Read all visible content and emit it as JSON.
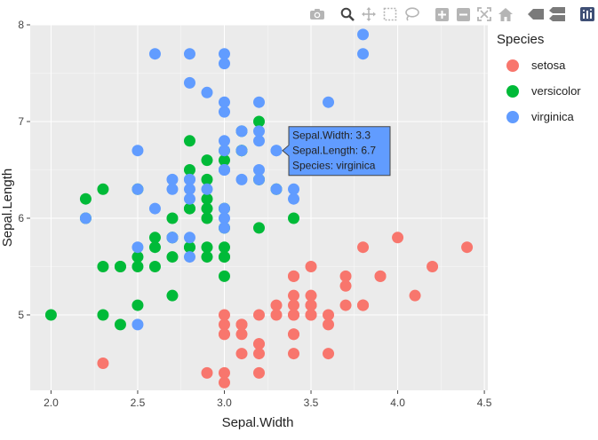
{
  "modebar": {
    "icons": [
      "camera-icon",
      "zoom-icon",
      "pan-icon",
      "box-select-icon",
      "lasso-select-icon",
      "zoom-in-icon",
      "zoom-out-icon",
      "autoscale-icon",
      "reset-axes-icon",
      "spike-lines-icon",
      "compare-hover-icon",
      "plotly-logo-icon"
    ]
  },
  "colors": {
    "setosa": "#F8766D",
    "versicolor": "#00BA38",
    "virginica": "#619CFF",
    "plot_bg": "#EBEBEB",
    "grid": "#FFFFFF"
  },
  "legend": {
    "title": "Species",
    "items": [
      "setosa",
      "versicolor",
      "virginica"
    ]
  },
  "tooltip": {
    "line1": "Sepal.Width: 3.3",
    "line2": "Sepal.Length: 6.7",
    "line3": "Species: virginica",
    "point": [
      3.3,
      6.7
    ]
  },
  "chart_data": {
    "type": "scatter",
    "xlabel": "Sepal.Width",
    "ylabel": "Sepal.Length",
    "xlim": [
      1.88,
      4.52
    ],
    "ylim": [
      4.22,
      8.0
    ],
    "x_ticks": [
      2.0,
      2.5,
      3.0,
      3.5,
      4.0,
      4.5
    ],
    "x_tick_labels": [
      "2.0",
      "2.5",
      "3.0",
      "3.5",
      "4.0",
      "4.5"
    ],
    "y_ticks": [
      5,
      6,
      7,
      8
    ],
    "y_tick_labels": [
      "5",
      "6",
      "7",
      "8"
    ],
    "grid": true,
    "legend_position": "right",
    "series": [
      {
        "name": "setosa",
        "points": [
          [
            3.5,
            5.1
          ],
          [
            3.0,
            4.9
          ],
          [
            3.2,
            4.7
          ],
          [
            3.1,
            4.6
          ],
          [
            3.6,
            5.0
          ],
          [
            3.9,
            5.4
          ],
          [
            3.4,
            4.6
          ],
          [
            3.4,
            5.0
          ],
          [
            2.9,
            4.4
          ],
          [
            3.1,
            4.9
          ],
          [
            3.7,
            5.4
          ],
          [
            3.4,
            4.8
          ],
          [
            3.0,
            4.8
          ],
          [
            3.0,
            4.3
          ],
          [
            4.0,
            5.8
          ],
          [
            4.4,
            5.7
          ],
          [
            3.9,
            5.4
          ],
          [
            3.5,
            5.1
          ],
          [
            3.8,
            5.7
          ],
          [
            3.8,
            5.1
          ],
          [
            3.4,
            5.4
          ],
          [
            3.7,
            5.1
          ],
          [
            3.6,
            4.6
          ],
          [
            3.3,
            5.1
          ],
          [
            3.4,
            4.8
          ],
          [
            3.0,
            5.0
          ],
          [
            3.4,
            5.0
          ],
          [
            3.5,
            5.2
          ],
          [
            3.4,
            5.2
          ],
          [
            3.2,
            4.7
          ],
          [
            3.1,
            4.8
          ],
          [
            3.4,
            5.4
          ],
          [
            4.1,
            5.2
          ],
          [
            4.2,
            5.5
          ],
          [
            3.1,
            4.9
          ],
          [
            3.2,
            5.0
          ],
          [
            3.5,
            5.5
          ],
          [
            3.6,
            4.9
          ],
          [
            3.0,
            4.4
          ],
          [
            3.4,
            5.1
          ],
          [
            3.5,
            5.0
          ],
          [
            2.3,
            4.5
          ],
          [
            3.2,
            4.4
          ],
          [
            3.5,
            5.0
          ],
          [
            3.8,
            5.1
          ],
          [
            3.0,
            4.8
          ],
          [
            3.8,
            5.1
          ],
          [
            3.2,
            4.6
          ],
          [
            3.7,
            5.3
          ],
          [
            3.3,
            5.0
          ]
        ]
      },
      {
        "name": "versicolor",
        "points": [
          [
            3.2,
            7.0
          ],
          [
            3.2,
            6.4
          ],
          [
            3.1,
            6.9
          ],
          [
            2.3,
            5.5
          ],
          [
            2.8,
            6.5
          ],
          [
            2.8,
            5.7
          ],
          [
            3.3,
            6.3
          ],
          [
            2.4,
            4.9
          ],
          [
            2.9,
            6.6
          ],
          [
            2.7,
            5.2
          ],
          [
            2.0,
            5.0
          ],
          [
            3.0,
            5.9
          ],
          [
            2.2,
            6.0
          ],
          [
            2.9,
            6.1
          ],
          [
            2.9,
            5.6
          ],
          [
            3.1,
            6.7
          ],
          [
            3.0,
            5.6
          ],
          [
            2.7,
            5.8
          ],
          [
            2.2,
            6.2
          ],
          [
            2.5,
            5.6
          ],
          [
            3.2,
            5.9
          ],
          [
            2.8,
            6.1
          ],
          [
            2.5,
            6.3
          ],
          [
            2.8,
            6.1
          ],
          [
            2.9,
            6.4
          ],
          [
            3.0,
            6.6
          ],
          [
            2.8,
            6.8
          ],
          [
            3.0,
            6.7
          ],
          [
            2.9,
            6.0
          ],
          [
            2.6,
            5.7
          ],
          [
            2.4,
            5.5
          ],
          [
            2.4,
            5.5
          ],
          [
            2.7,
            5.8
          ],
          [
            2.7,
            6.0
          ],
          [
            3.0,
            5.4
          ],
          [
            3.4,
            6.0
          ],
          [
            3.1,
            6.7
          ],
          [
            2.3,
            6.3
          ],
          [
            3.0,
            5.6
          ],
          [
            2.5,
            5.5
          ],
          [
            2.6,
            5.5
          ],
          [
            3.0,
            6.1
          ],
          [
            2.6,
            5.8
          ],
          [
            2.3,
            5.0
          ],
          [
            2.7,
            5.6
          ],
          [
            3.0,
            5.7
          ],
          [
            2.9,
            5.7
          ],
          [
            2.9,
            6.2
          ],
          [
            2.5,
            5.1
          ],
          [
            2.8,
            5.7
          ]
        ]
      },
      {
        "name": "virginica",
        "points": [
          [
            3.3,
            6.3
          ],
          [
            2.7,
            5.8
          ],
          [
            3.0,
            7.1
          ],
          [
            2.9,
            6.3
          ],
          [
            3.0,
            6.5
          ],
          [
            3.0,
            7.6
          ],
          [
            2.5,
            4.9
          ],
          [
            2.9,
            7.3
          ],
          [
            2.5,
            6.7
          ],
          [
            3.6,
            7.2
          ],
          [
            3.2,
            6.5
          ],
          [
            2.7,
            6.4
          ],
          [
            3.0,
            6.8
          ],
          [
            2.5,
            5.7
          ],
          [
            2.8,
            5.8
          ],
          [
            3.2,
            6.4
          ],
          [
            3.0,
            6.5
          ],
          [
            3.8,
            7.7
          ],
          [
            2.6,
            7.7
          ],
          [
            2.2,
            6.0
          ],
          [
            3.2,
            6.9
          ],
          [
            2.8,
            5.6
          ],
          [
            2.8,
            7.7
          ],
          [
            2.7,
            6.3
          ],
          [
            3.3,
            6.7
          ],
          [
            3.2,
            7.2
          ],
          [
            2.8,
            6.2
          ],
          [
            3.0,
            6.1
          ],
          [
            2.8,
            6.4
          ],
          [
            3.0,
            7.2
          ],
          [
            2.8,
            7.4
          ],
          [
            3.8,
            7.9
          ],
          [
            2.8,
            6.4
          ],
          [
            2.8,
            6.3
          ],
          [
            2.6,
            6.1
          ],
          [
            3.0,
            7.7
          ],
          [
            3.4,
            6.3
          ],
          [
            3.1,
            6.4
          ],
          [
            3.0,
            6.0
          ],
          [
            3.1,
            6.9
          ],
          [
            3.1,
            6.7
          ],
          [
            3.1,
            6.9
          ],
          [
            2.7,
            5.8
          ],
          [
            3.2,
            6.8
          ],
          [
            3.3,
            6.7
          ],
          [
            3.0,
            6.7
          ],
          [
            2.5,
            6.3
          ],
          [
            3.0,
            6.5
          ],
          [
            3.4,
            6.2
          ],
          [
            3.0,
            5.9
          ]
        ]
      }
    ]
  }
}
